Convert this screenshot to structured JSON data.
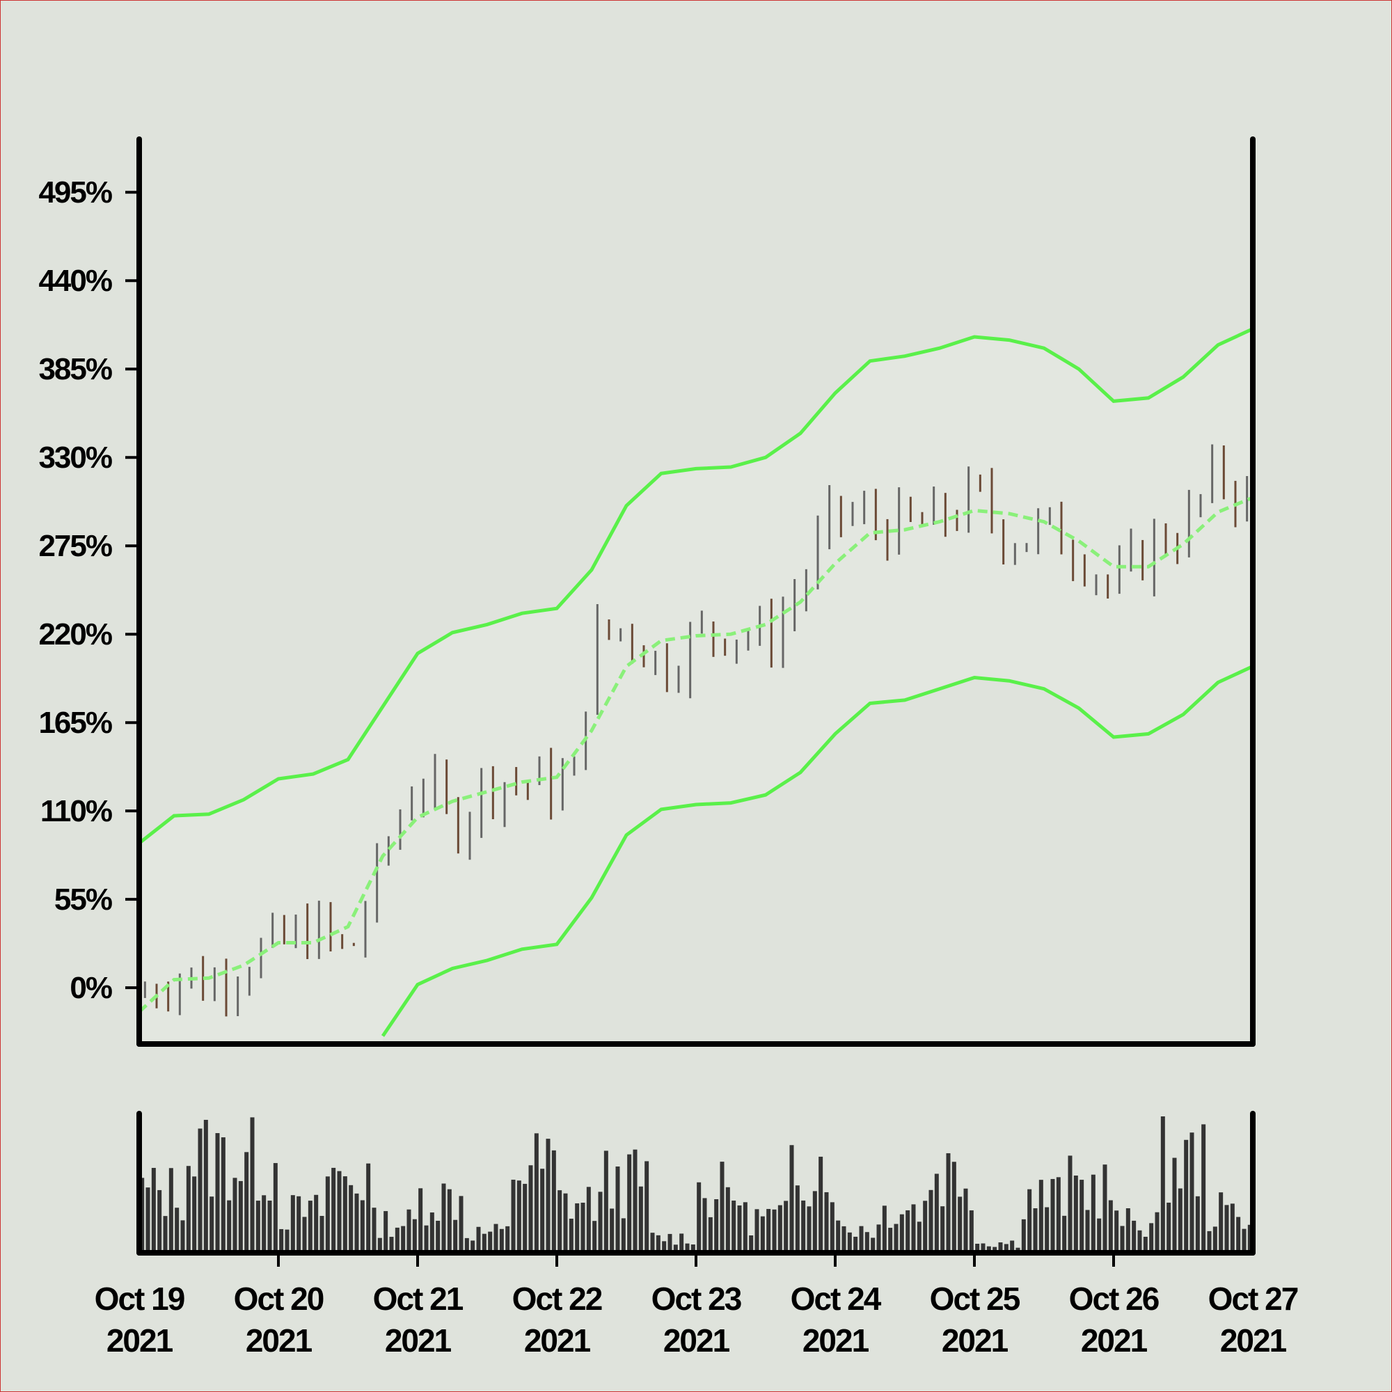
{
  "chart_data": {
    "type": "ohlc",
    "title": "",
    "xlabel": "",
    "ylabel": "",
    "y_unit": "%",
    "ylim": [
      -35,
      528
    ],
    "yticks": [
      0,
      55,
      110,
      165,
      220,
      275,
      330,
      385,
      440,
      495
    ],
    "ytick_labels": [
      "0%",
      "55%",
      "110%",
      "165%",
      "220%",
      "275%",
      "330%",
      "385%",
      "440%",
      "495%"
    ],
    "x_start": "2021-10-19",
    "x_end": "2021-10-27",
    "xticks": [
      {
        "date": "2021-10-19",
        "line1": "Oct 19",
        "line2": "2021"
      },
      {
        "date": "2021-10-20",
        "line1": "Oct 20",
        "line2": "2021"
      },
      {
        "date": "2021-10-21",
        "line1": "Oct 21",
        "line2": "2021"
      },
      {
        "date": "2021-10-22",
        "line1": "Oct 22",
        "line2": "2021"
      },
      {
        "date": "2021-10-23",
        "line1": "Oct 23",
        "line2": "2021"
      },
      {
        "date": "2021-10-24",
        "line1": "Oct 24",
        "line2": "2021"
      },
      {
        "date": "2021-10-25",
        "line1": "Oct 25",
        "line2": "2021"
      },
      {
        "date": "2021-10-26",
        "line1": "Oct 26",
        "line2": "2021"
      },
      {
        "date": "2021-10-27",
        "line1": "Oct 27",
        "line2": "2021"
      }
    ],
    "close_trend": [
      {
        "t": "2021-10-19T00:00",
        "v": -5
      },
      {
        "t": "2021-10-19T06:00",
        "v": 10
      },
      {
        "t": "2021-10-19T12:00",
        "v": 2
      },
      {
        "t": "2021-10-19T18:00",
        "v": 18
      },
      {
        "t": "2021-10-20T00:00",
        "v": 25
      },
      {
        "t": "2021-10-20T06:00",
        "v": 38
      },
      {
        "t": "2021-10-20T12:00",
        "v": 18
      },
      {
        "t": "2021-10-20T18:00",
        "v": 80
      },
      {
        "t": "2021-10-21T00:00",
        "v": 135
      },
      {
        "t": "2021-10-21T06:00",
        "v": 100
      },
      {
        "t": "2021-10-21T12:00",
        "v": 130
      },
      {
        "t": "2021-10-21T18:00",
        "v": 128
      },
      {
        "t": "2021-10-22T00:00",
        "v": 125
      },
      {
        "t": "2021-10-22T03:00",
        "v": 130
      },
      {
        "t": "2021-10-22T06:00",
        "v": 215
      },
      {
        "t": "2021-10-22T12:00",
        "v": 225
      },
      {
        "t": "2021-10-22T18:00",
        "v": 200
      },
      {
        "t": "2021-10-23T00:00",
        "v": 218
      },
      {
        "t": "2021-10-23T06:00",
        "v": 225
      },
      {
        "t": "2021-10-23T12:00",
        "v": 215
      },
      {
        "t": "2021-10-23T18:00",
        "v": 250
      },
      {
        "t": "2021-10-24T00:00",
        "v": 295
      },
      {
        "t": "2021-10-24T06:00",
        "v": 290
      },
      {
        "t": "2021-10-24T12:00",
        "v": 285
      },
      {
        "t": "2021-10-24T18:00",
        "v": 290
      },
      {
        "t": "2021-10-25T00:00",
        "v": 305
      },
      {
        "t": "2021-10-25T06:00",
        "v": 280
      },
      {
        "t": "2021-10-25T12:00",
        "v": 285
      },
      {
        "t": "2021-10-25T18:00",
        "v": 275
      },
      {
        "t": "2021-10-26T00:00",
        "v": 245
      },
      {
        "t": "2021-10-26T06:00",
        "v": 275
      },
      {
        "t": "2021-10-26T12:00",
        "v": 285
      },
      {
        "t": "2021-10-26T18:00",
        "v": 320
      },
      {
        "t": "2021-10-27T00:00",
        "v": 300
      }
    ],
    "bands": {
      "upper": [
        {
          "t": "2021-10-19T00:00",
          "v": 90
        },
        {
          "t": "2021-10-19T06:00",
          "v": 107
        },
        {
          "t": "2021-10-19T12:00",
          "v": 108
        },
        {
          "t": "2021-10-19T18:00",
          "v": 117
        },
        {
          "t": "2021-10-20T00:00",
          "v": 130
        },
        {
          "t": "2021-10-20T06:00",
          "v": 133
        },
        {
          "t": "2021-10-20T12:00",
          "v": 142
        },
        {
          "t": "2021-10-20T18:00",
          "v": 175
        },
        {
          "t": "2021-10-21T00:00",
          "v": 208
        },
        {
          "t": "2021-10-21T06:00",
          "v": 221
        },
        {
          "t": "2021-10-21T12:00",
          "v": 226
        },
        {
          "t": "2021-10-21T18:00",
          "v": 233
        },
        {
          "t": "2021-10-22T00:00",
          "v": 236
        },
        {
          "t": "2021-10-22T06:00",
          "v": 260
        },
        {
          "t": "2021-10-22T12:00",
          "v": 300
        },
        {
          "t": "2021-10-22T18:00",
          "v": 320
        },
        {
          "t": "2021-10-23T00:00",
          "v": 323
        },
        {
          "t": "2021-10-23T06:00",
          "v": 324
        },
        {
          "t": "2021-10-23T12:00",
          "v": 330
        },
        {
          "t": "2021-10-23T18:00",
          "v": 345
        },
        {
          "t": "2021-10-24T00:00",
          "v": 370
        },
        {
          "t": "2021-10-24T06:00",
          "v": 390
        },
        {
          "t": "2021-10-24T12:00",
          "v": 393
        },
        {
          "t": "2021-10-24T18:00",
          "v": 398
        },
        {
          "t": "2021-10-25T00:00",
          "v": 405
        },
        {
          "t": "2021-10-25T06:00",
          "v": 403
        },
        {
          "t": "2021-10-25T12:00",
          "v": 398
        },
        {
          "t": "2021-10-25T18:00",
          "v": 385
        },
        {
          "t": "2021-10-26T00:00",
          "v": 365
        },
        {
          "t": "2021-10-26T06:00",
          "v": 367
        },
        {
          "t": "2021-10-26T12:00",
          "v": 380
        },
        {
          "t": "2021-10-26T18:00",
          "v": 400
        },
        {
          "t": "2021-10-27T00:00",
          "v": 410
        }
      ],
      "middle": [
        {
          "t": "2021-10-19T00:00",
          "v": -15
        },
        {
          "t": "2021-10-19T06:00",
          "v": 5
        },
        {
          "t": "2021-10-19T12:00",
          "v": 6
        },
        {
          "t": "2021-10-19T18:00",
          "v": 14
        },
        {
          "t": "2021-10-20T00:00",
          "v": 28
        },
        {
          "t": "2021-10-20T06:00",
          "v": 28
        },
        {
          "t": "2021-10-20T12:00",
          "v": 38
        },
        {
          "t": "2021-10-20T18:00",
          "v": 82
        },
        {
          "t": "2021-10-21T00:00",
          "v": 106
        },
        {
          "t": "2021-10-21T06:00",
          "v": 116
        },
        {
          "t": "2021-10-21T12:00",
          "v": 122
        },
        {
          "t": "2021-10-21T18:00",
          "v": 128
        },
        {
          "t": "2021-10-22T00:00",
          "v": 131
        },
        {
          "t": "2021-10-22T06:00",
          "v": 160
        },
        {
          "t": "2021-10-22T12:00",
          "v": 200
        },
        {
          "t": "2021-10-22T18:00",
          "v": 216
        },
        {
          "t": "2021-10-23T00:00",
          "v": 219
        },
        {
          "t": "2021-10-23T06:00",
          "v": 220
        },
        {
          "t": "2021-10-23T12:00",
          "v": 226
        },
        {
          "t": "2021-10-23T18:00",
          "v": 240
        },
        {
          "t": "2021-10-24T00:00",
          "v": 264
        },
        {
          "t": "2021-10-24T06:00",
          "v": 283
        },
        {
          "t": "2021-10-24T12:00",
          "v": 285
        },
        {
          "t": "2021-10-24T18:00",
          "v": 290
        },
        {
          "t": "2021-10-25T00:00",
          "v": 297
        },
        {
          "t": "2021-10-25T06:00",
          "v": 295
        },
        {
          "t": "2021-10-25T12:00",
          "v": 290
        },
        {
          "t": "2021-10-25T18:00",
          "v": 278
        },
        {
          "t": "2021-10-26T00:00",
          "v": 262
        },
        {
          "t": "2021-10-26T06:00",
          "v": 262
        },
        {
          "t": "2021-10-26T12:00",
          "v": 276
        },
        {
          "t": "2021-10-26T18:00",
          "v": 296
        },
        {
          "t": "2021-10-27T00:00",
          "v": 305
        }
      ],
      "lower": [
        {
          "t": "2021-10-20T18:00",
          "v": -30
        },
        {
          "t": "2021-10-21T00:00",
          "v": 2
        },
        {
          "t": "2021-10-21T06:00",
          "v": 12
        },
        {
          "t": "2021-10-21T12:00",
          "v": 17
        },
        {
          "t": "2021-10-21T18:00",
          "v": 24
        },
        {
          "t": "2021-10-22T00:00",
          "v": 27
        },
        {
          "t": "2021-10-22T06:00",
          "v": 56
        },
        {
          "t": "2021-10-22T12:00",
          "v": 95
        },
        {
          "t": "2021-10-22T18:00",
          "v": 111
        },
        {
          "t": "2021-10-23T00:00",
          "v": 114
        },
        {
          "t": "2021-10-23T06:00",
          "v": 115
        },
        {
          "t": "2021-10-23T12:00",
          "v": 120
        },
        {
          "t": "2021-10-23T18:00",
          "v": 134
        },
        {
          "t": "2021-10-24T00:00",
          "v": 158
        },
        {
          "t": "2021-10-24T06:00",
          "v": 177
        },
        {
          "t": "2021-10-24T12:00",
          "v": 179
        },
        {
          "t": "2021-10-24T18:00",
          "v": 186
        },
        {
          "t": "2021-10-25T00:00",
          "v": 193
        },
        {
          "t": "2021-10-25T06:00",
          "v": 191
        },
        {
          "t": "2021-10-25T12:00",
          "v": 186
        },
        {
          "t": "2021-10-25T18:00",
          "v": 174
        },
        {
          "t": "2021-10-26T00:00",
          "v": 156
        },
        {
          "t": "2021-10-26T06:00",
          "v": 158
        },
        {
          "t": "2021-10-26T12:00",
          "v": 170
        },
        {
          "t": "2021-10-26T18:00",
          "v": 190
        },
        {
          "t": "2021-10-27T00:00",
          "v": 200
        }
      ]
    },
    "volume_levels": [
      0.6,
      0.95,
      0.9,
      0.4,
      0.75,
      0.3,
      0.55,
      0.2,
      0.85,
      0.5,
      0.7,
      0.15,
      0.6,
      0.35,
      0.9,
      0.25,
      0.45,
      0.8,
      0.1,
      0.55,
      0.65,
      0.3,
      0.9,
      0.4,
      0.2,
      0.75,
      0.5,
      0.95,
      0.35,
      0.6
    ],
    "colors": {
      "background": "#dfe3dc",
      "band_fill": "#e3e7e0",
      "band_line": "#5af04a",
      "middle_line": "#8af07a",
      "bar_up": "#666666",
      "bar_down": "#6b4a36",
      "volume": "#333333",
      "axis": "#000000"
    }
  }
}
